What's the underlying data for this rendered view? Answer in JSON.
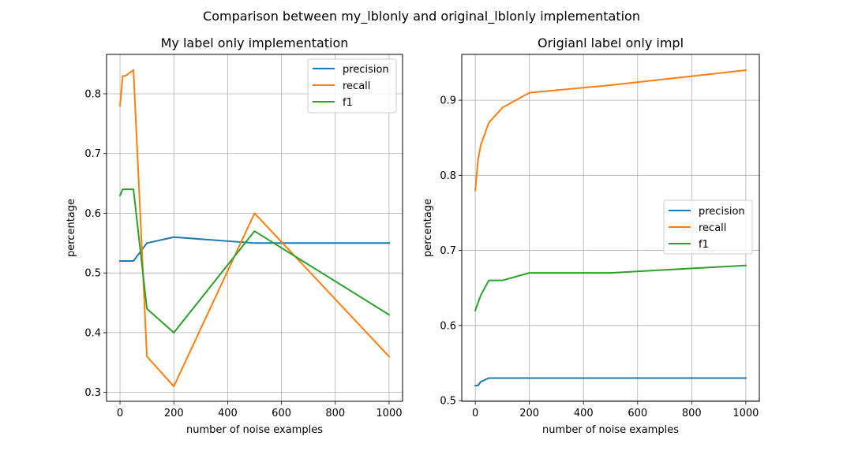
{
  "figure": {
    "suptitle": "Comparison between my_lblonly and original_lblonly implementation"
  },
  "colors": {
    "precision": "#1f77b4",
    "recall": "#ff7f0e",
    "f1": "#2ca02c",
    "grid": "#b0b0b0"
  },
  "chart_data": [
    {
      "type": "line",
      "title": "My label only implementation",
      "xlabel": "number of noise examples",
      "ylabel": "percentage",
      "x": [
        0,
        10,
        20,
        50,
        100,
        200,
        500,
        1000
      ],
      "xlim": [
        -50,
        1050
      ],
      "ylim": [
        0.285,
        0.866
      ],
      "xticks": [
        0,
        200,
        400,
        600,
        800,
        1000
      ],
      "yticks": [
        0.3,
        0.4,
        0.5,
        0.6,
        0.7,
        0.8
      ],
      "grid": true,
      "legend_position": "upper right",
      "series": [
        {
          "name": "precision",
          "color": "#1f77b4",
          "values": [
            0.52,
            0.52,
            0.52,
            0.52,
            0.55,
            0.56,
            0.55,
            0.55
          ]
        },
        {
          "name": "recall",
          "color": "#ff7f0e",
          "values": [
            0.78,
            0.83,
            0.83,
            0.84,
            0.36,
            0.31,
            0.6,
            0.36
          ]
        },
        {
          "name": "f1",
          "color": "#2ca02c",
          "values": [
            0.63,
            0.64,
            0.64,
            0.64,
            0.44,
            0.4,
            0.57,
            0.43
          ]
        }
      ]
    },
    {
      "type": "line",
      "title": "Origianl label only impl",
      "xlabel": "number of noise examples",
      "ylabel": "percentage",
      "x": [
        0,
        10,
        20,
        50,
        100,
        200,
        500,
        1000
      ],
      "xlim": [
        -50,
        1050
      ],
      "ylim": [
        0.499,
        0.961
      ],
      "xticks": [
        0,
        200,
        400,
        600,
        800,
        1000
      ],
      "yticks": [
        0.5,
        0.6,
        0.7,
        0.8,
        0.9
      ],
      "grid": true,
      "legend_position": "center right",
      "series": [
        {
          "name": "precision",
          "color": "#1f77b4",
          "values": [
            0.52,
            0.52,
            0.525,
            0.53,
            0.53,
            0.53,
            0.53,
            0.53
          ]
        },
        {
          "name": "recall",
          "color": "#ff7f0e",
          "values": [
            0.78,
            0.82,
            0.84,
            0.87,
            0.89,
            0.91,
            0.92,
            0.94
          ]
        },
        {
          "name": "f1",
          "color": "#2ca02c",
          "values": [
            0.62,
            0.63,
            0.64,
            0.66,
            0.66,
            0.67,
            0.67,
            0.68
          ]
        }
      ]
    }
  ]
}
